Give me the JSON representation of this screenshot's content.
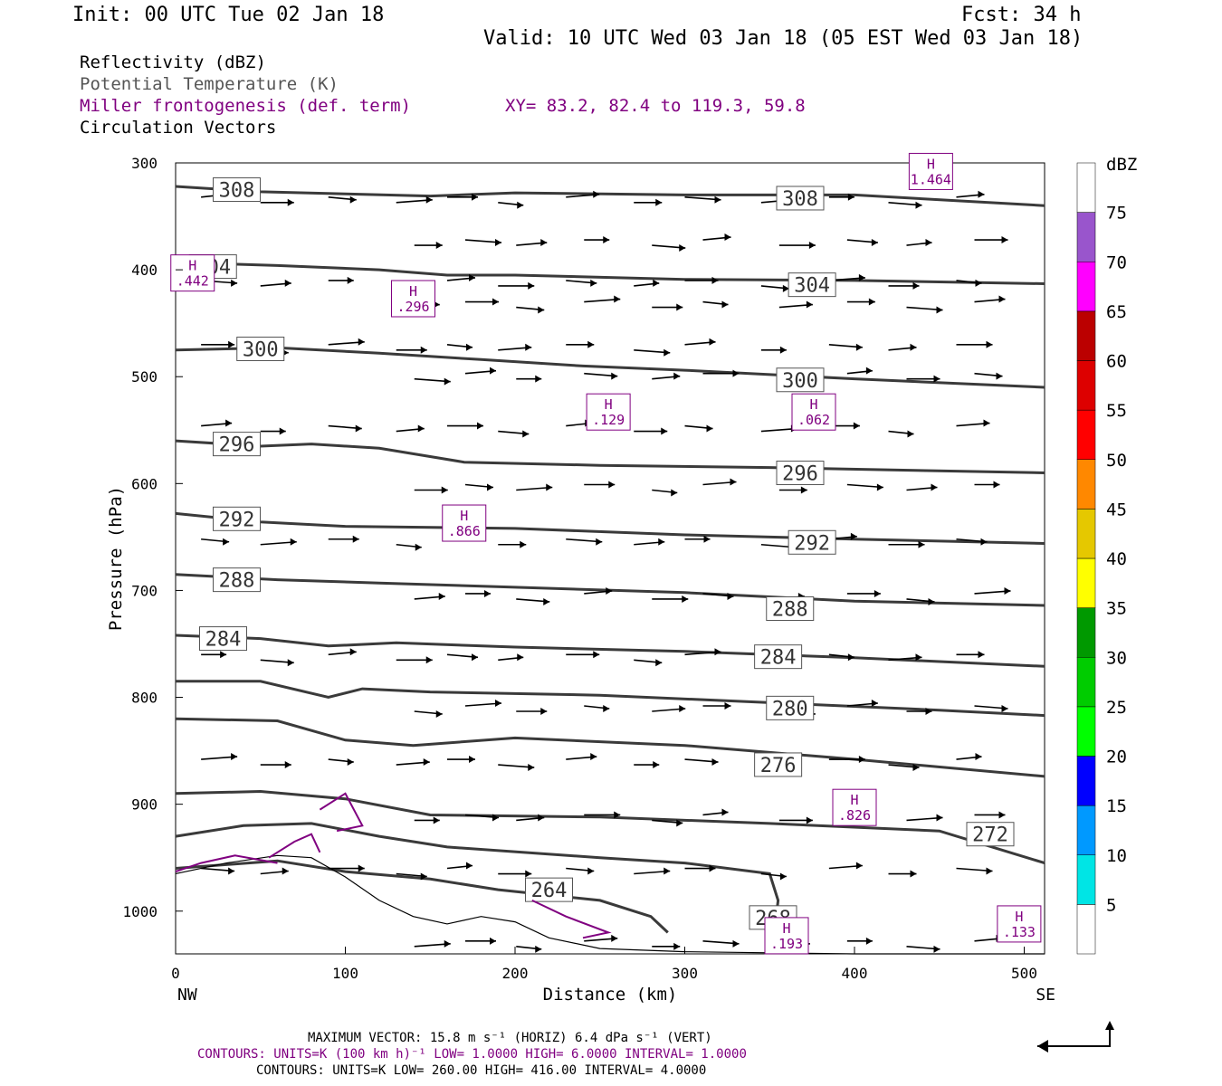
{
  "header": {
    "init": "Init: 00 UTC Tue 02 Jan 18",
    "fcst": "Fcst:   34 h",
    "valid": "Valid: 10 UTC Wed 03 Jan 18 (05 EST Wed 03 Jan 18)"
  },
  "fields": {
    "reflectivity": "Reflectivity (dBZ)",
    "theta": "Potential Temperature (K)",
    "miller": "Miller frontogenesis (def. term)",
    "xy": "XY=  83.2, 82.4 to 119.3, 59.8",
    "vectors": "Circulation Vectors"
  },
  "footer": {
    "maxvec": "MAXIMUM VECTOR:  15.8 m s⁻¹ (HORIZ)          6.4 dPa s⁻¹ (VERT)",
    "contours1": "CONTOURS:  UNITS=K (100 km h)⁻¹  LOW=   1.0000       HIGH=   6.0000       INTERVAL=    1.0000",
    "contours2": "CONTOURS:  UNITS=K  LOW=   260.00        HIGH=   416.00        INTERVAL=    4.0000"
  },
  "colors": {
    "theta": "#3a3a3a",
    "fronto": "#800080",
    "text": "#000000"
  },
  "chart_data": {
    "type": "contour-cross-section",
    "xlabel": "Distance (km)",
    "ylabel": "Pressure (hPa)",
    "xlim": [
      0,
      512
    ],
    "ylim": [
      300,
      1040
    ],
    "x_ticks": [
      0,
      100,
      200,
      300,
      400,
      500
    ],
    "y_ticks": [
      300,
      400,
      500,
      600,
      700,
      800,
      900,
      1000
    ],
    "x_end_labels": {
      "left": "NW",
      "right": "SE"
    },
    "colorbar": {
      "title": "dBZ",
      "levels": [
        5,
        10,
        15,
        20,
        25,
        30,
        35,
        40,
        45,
        50,
        55,
        60,
        65,
        70,
        75
      ],
      "colors": [
        "#ffffff",
        "#00e5e5",
        "#0099ff",
        "#0000ff",
        "#00ff00",
        "#00cc00",
        "#009900",
        "#ffff00",
        "#e5c800",
        "#ff8800",
        "#ff0000",
        "#dd0000",
        "#bb0000",
        "#ff00ff",
        "#9955cc",
        "#ffffff"
      ]
    },
    "theta_contours": [
      {
        "label": "308",
        "points": [
          [
            0,
            322
          ],
          [
            50,
            327
          ],
          [
            100,
            329
          ],
          [
            150,
            331
          ],
          [
            200,
            328
          ],
          [
            300,
            330
          ],
          [
            400,
            330
          ],
          [
            512,
            340
          ]
        ],
        "label_at": [
          [
            36,
            325
          ],
          [
            368,
            333
          ]
        ]
      },
      {
        "label": "304",
        "points": [
          [
            0,
            393
          ],
          [
            60,
            396
          ],
          [
            120,
            400
          ],
          [
            160,
            405
          ],
          [
            200,
            405
          ],
          [
            300,
            409
          ],
          [
            400,
            410
          ],
          [
            512,
            413
          ]
        ],
        "label_at": [
          [
            22,
            397
          ],
          [
            375,
            414
          ]
        ]
      },
      {
        "label": "300",
        "points": [
          [
            0,
            475
          ],
          [
            60,
            473
          ],
          [
            120,
            478
          ],
          [
            180,
            484
          ],
          [
            240,
            490
          ],
          [
            300,
            494
          ],
          [
            400,
            502
          ],
          [
            512,
            510
          ]
        ],
        "label_at": [
          [
            50,
            474
          ],
          [
            368,
            503
          ]
        ]
      },
      {
        "label": "296",
        "points": [
          [
            0,
            560
          ],
          [
            50,
            565
          ],
          [
            80,
            563
          ],
          [
            120,
            567
          ],
          [
            170,
            580
          ],
          [
            250,
            583
          ],
          [
            350,
            585
          ],
          [
            512,
            590
          ]
        ],
        "label_at": [
          [
            36,
            563
          ],
          [
            368,
            590
          ]
        ]
      },
      {
        "label": "292",
        "points": [
          [
            0,
            628
          ],
          [
            50,
            636
          ],
          [
            100,
            640
          ],
          [
            200,
            642
          ],
          [
            300,
            648
          ],
          [
            400,
            652
          ],
          [
            512,
            656
          ]
        ],
        "label_at": [
          [
            36,
            633
          ],
          [
            375,
            655
          ]
        ]
      },
      {
        "label": "288",
        "points": [
          [
            0,
            685
          ],
          [
            60,
            690
          ],
          [
            120,
            693
          ],
          [
            200,
            697
          ],
          [
            300,
            702
          ],
          [
            400,
            710
          ],
          [
            512,
            714
          ]
        ],
        "label_at": [
          [
            36,
            690
          ],
          [
            362,
            717
          ]
        ]
      },
      {
        "label": "284",
        "points": [
          [
            0,
            742
          ],
          [
            50,
            745
          ],
          [
            90,
            752
          ],
          [
            130,
            749
          ],
          [
            200,
            753
          ],
          [
            300,
            757
          ],
          [
            400,
            763
          ],
          [
            512,
            771
          ]
        ],
        "label_at": [
          [
            28,
            745
          ],
          [
            355,
            762
          ]
        ]
      },
      {
        "label": "280",
        "points": [
          [
            0,
            785
          ],
          [
            50,
            785
          ],
          [
            90,
            800
          ],
          [
            110,
            792
          ],
          [
            150,
            795
          ],
          [
            250,
            798
          ],
          [
            350,
            805
          ],
          [
            450,
            812
          ],
          [
            512,
            817
          ]
        ],
        "label_at": [
          [
            362,
            810
          ]
        ]
      },
      {
        "label": "276",
        "points": [
          [
            0,
            820
          ],
          [
            60,
            822
          ],
          [
            100,
            840
          ],
          [
            140,
            845
          ],
          [
            200,
            838
          ],
          [
            300,
            845
          ],
          [
            400,
            858
          ],
          [
            512,
            874
          ]
        ],
        "label_at": [
          [
            355,
            863
          ]
        ]
      },
      {
        "label": "272",
        "points": [
          [
            0,
            890
          ],
          [
            50,
            888
          ],
          [
            100,
            895
          ],
          [
            150,
            910
          ],
          [
            250,
            912
          ],
          [
            350,
            918
          ],
          [
            450,
            925
          ],
          [
            512,
            955
          ]
        ],
        "label_at": [
          [
            480,
            928
          ]
        ]
      },
      {
        "label": "268",
        "points": [
          [
            0,
            930
          ],
          [
            40,
            920
          ],
          [
            80,
            918
          ],
          [
            120,
            930
          ],
          [
            160,
            940
          ],
          [
            250,
            950
          ],
          [
            300,
            955
          ],
          [
            350,
            965
          ],
          [
            355,
            990
          ],
          [
            352,
            1030
          ]
        ],
        "label_at": [
          [
            352,
            1006
          ]
        ]
      },
      {
        "label": "264",
        "points": [
          [
            0,
            960
          ],
          [
            60,
            953
          ],
          [
            100,
            963
          ],
          [
            150,
            970
          ],
          [
            190,
            980
          ],
          [
            250,
            990
          ],
          [
            280,
            1005
          ],
          [
            290,
            1020
          ]
        ],
        "label_at": [
          [
            220,
            980
          ]
        ]
      }
    ],
    "fronto_maxima": [
      {
        "label": "H",
        "value": ".442",
        "x": 10,
        "p": 403
      },
      {
        "label": "H",
        "value": ".296",
        "x": 140,
        "p": 427
      },
      {
        "label": "H",
        "value": ".129",
        "x": 255,
        "p": 533
      },
      {
        "label": "H",
        "value": ".062",
        "x": 376,
        "p": 533
      },
      {
        "label": "H",
        "value": ".866",
        "x": 170,
        "p": 637
      },
      {
        "label": "H",
        "value": ".826",
        "x": 400,
        "p": 903
      },
      {
        "label": "H",
        "value": "1.464",
        "x": 445,
        "p": 308
      },
      {
        "label": "H",
        "value": ".193",
        "x": 360,
        "p": 1023
      },
      {
        "label": "H",
        "value": ".133",
        "x": 497,
        "p": 1012
      }
    ],
    "terrain": [
      [
        0,
        965
      ],
      [
        30,
        955
      ],
      [
        60,
        948
      ],
      [
        80,
        950
      ],
      [
        100,
        968
      ],
      [
        120,
        990
      ],
      [
        140,
        1005
      ],
      [
        160,
        1012
      ],
      [
        180,
        1005
      ],
      [
        200,
        1010
      ],
      [
        220,
        1025
      ],
      [
        250,
        1035
      ],
      [
        300,
        1038
      ],
      [
        400,
        1040
      ],
      [
        512,
        1040
      ]
    ]
  }
}
